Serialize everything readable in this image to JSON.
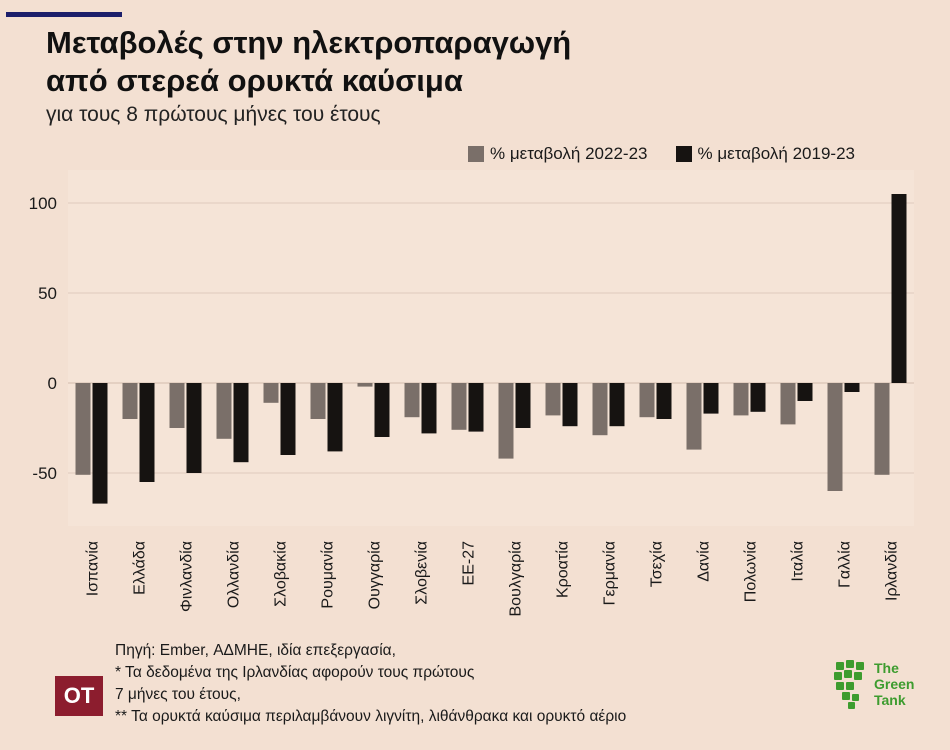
{
  "header": {
    "title_line1": "Μεταβολές στην ηλεκτροπαραγωγή",
    "title_line2": "από στερεά ορυκτά καύσιμα",
    "subtitle": "για τους 8 πρώτους μήνες του έτους"
  },
  "legend": {
    "series1": "% μεταβολή 2022-23",
    "series2": "% μεταβολή 2019-23"
  },
  "colors": {
    "series1": "#7a6f69",
    "series2": "#161311",
    "grid": "#e3cfc1",
    "background": "#f3e0d2",
    "ot_brand": "#8c1d2e",
    "green_tank": "#3d9c2f"
  },
  "chart_data": {
    "type": "bar",
    "categories": [
      "Ισπανία",
      "Ελλάδα",
      "Φινλανδία",
      "Ολλανδία",
      "Σλοβακία",
      "Ρουμανία",
      "Ουγγαρία",
      "Σλοβενία",
      "ΕΕ-27",
      "Βουλγαρία",
      "Κροατία",
      "Γερμανία",
      "Τσεχία",
      "Δανία",
      "Πολωνία",
      "Ιταλία",
      "Γαλλία",
      "Ιρλανδία"
    ],
    "series": [
      {
        "name": "% μεταβολή 2022-23",
        "values": [
          -51,
          -20,
          -25,
          -31,
          -11,
          -20,
          -2,
          -19,
          -26,
          -42,
          -18,
          -29,
          -19,
          -37,
          -18,
          -23,
          -60,
          -51
        ]
      },
      {
        "name": "% μεταβολή 2019-23",
        "values": [
          -67,
          -55,
          -50,
          -44,
          -40,
          -38,
          -30,
          -28,
          -27,
          -25,
          -24,
          -24,
          -20,
          -17,
          -16,
          -10,
          -5,
          105
        ]
      }
    ],
    "yticks": [
      100,
      50,
      0,
      -50
    ],
    "ylim": [
      -75,
      118
    ],
    "title": "Μεταβολές στην ηλεκτροπαραγωγή από στερεά ορυκτά καύσιμα",
    "subtitle": "για τους 8 πρώτους μήνες του έτους",
    "xlabel": "",
    "ylabel": "",
    "grid": true,
    "legend_position": "top-right"
  },
  "footer": {
    "source_line1": "Πηγή: Ember, ΑΔΜΗΕ, ιδία επεξεργασία,",
    "note_line2": "* Τα δεδομένα της Ιρλανδίας αφορούν τους πρώτους",
    "note_line3": "7 μήνες του έτους,",
    "note_line4": "** Τα ορυκτά καύσιμα περιλαμβάνουν λιγνίτη, λιθάνθρακα και ορυκτό αέριο"
  },
  "logos": {
    "ot_text": "ΟΤ",
    "green_tank_line1": "The",
    "green_tank_line2": "Green",
    "green_tank_line3": "Tank"
  }
}
